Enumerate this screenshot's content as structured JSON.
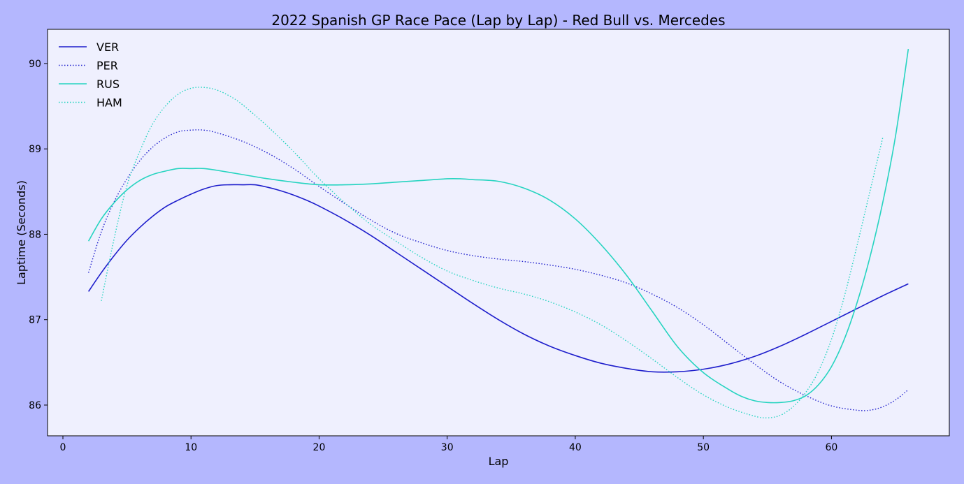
{
  "colors": {
    "background": "#b4b7fe",
    "plot_area": "#eff0fe",
    "red_bull": "#1e1ecc",
    "mercedes": "#26d4c0"
  },
  "chart_data": {
    "type": "line",
    "title": "2022 Spanish GP Race Pace (Lap by Lap) - Red Bull vs. Mercedes",
    "xlabel": "Lap",
    "ylabel": "Laptime (Seconds)",
    "xlim": [
      -1.2,
      69.2
    ],
    "ylim": [
      85.64,
      90.4
    ],
    "xticks": [
      0,
      10,
      20,
      30,
      40,
      50,
      60
    ],
    "yticks": [
      86,
      87,
      88,
      89,
      90
    ],
    "grid": false,
    "legend_position": "upper-left",
    "series": [
      {
        "name": "VER",
        "color": "#1e1ecc",
        "style": "solid",
        "x": [
          2,
          3,
          4,
          5,
          6,
          7,
          8,
          9,
          10,
          11,
          12,
          13,
          14,
          15,
          16,
          17,
          18,
          19,
          20,
          22,
          24,
          26,
          28,
          30,
          32,
          34,
          36,
          38,
          40,
          42,
          44,
          46,
          48,
          50,
          52,
          54,
          56,
          58,
          60,
          62,
          64,
          66
        ],
        "y": [
          87.33,
          87.55,
          87.75,
          87.93,
          88.08,
          88.21,
          88.32,
          88.4,
          88.47,
          88.53,
          88.57,
          88.58,
          88.58,
          88.58,
          88.55,
          88.51,
          88.46,
          88.4,
          88.33,
          88.17,
          87.99,
          87.79,
          87.59,
          87.39,
          87.19,
          87.0,
          86.83,
          86.69,
          86.58,
          86.49,
          86.43,
          86.39,
          86.39,
          86.42,
          86.48,
          86.57,
          86.69,
          86.83,
          86.98,
          87.13,
          87.28,
          87.42
        ]
      },
      {
        "name": "PER",
        "color": "#1e1ecc",
        "style": "dotted",
        "x": [
          2,
          3,
          4,
          5,
          6,
          7,
          8,
          9,
          10,
          11,
          12,
          14,
          16,
          18,
          20,
          22,
          24,
          26,
          28,
          30,
          32,
          34,
          36,
          38,
          40,
          42,
          44,
          46,
          48,
          50,
          52,
          54,
          56,
          58,
          60,
          62,
          63,
          64,
          65,
          66
        ],
        "y": [
          87.55,
          88.03,
          88.38,
          88.65,
          88.86,
          89.02,
          89.13,
          89.2,
          89.22,
          89.22,
          89.19,
          89.09,
          88.95,
          88.77,
          88.56,
          88.36,
          88.17,
          88.01,
          87.9,
          87.81,
          87.75,
          87.71,
          87.68,
          87.64,
          87.59,
          87.52,
          87.43,
          87.3,
          87.14,
          86.94,
          86.71,
          86.48,
          86.27,
          86.11,
          85.99,
          85.94,
          85.94,
          85.98,
          86.06,
          86.18
        ]
      },
      {
        "name": "RUS",
        "color": "#26d4c0",
        "style": "solid",
        "x": [
          2,
          3,
          4,
          5,
          6,
          7,
          8,
          9,
          10,
          11,
          12,
          14,
          16,
          18,
          20,
          22,
          24,
          26,
          28,
          30,
          31,
          32,
          34,
          36,
          38,
          40,
          42,
          44,
          46,
          48,
          50,
          52,
          53,
          54,
          55,
          56,
          57,
          58,
          59,
          60,
          61,
          62,
          63,
          64,
          65,
          66
        ],
        "y": [
          87.92,
          88.18,
          88.37,
          88.52,
          88.63,
          88.7,
          88.74,
          88.77,
          88.77,
          88.77,
          88.75,
          88.7,
          88.65,
          88.61,
          88.58,
          88.58,
          88.59,
          88.61,
          88.63,
          88.65,
          88.65,
          88.64,
          88.62,
          88.54,
          88.4,
          88.18,
          87.88,
          87.52,
          87.1,
          86.68,
          86.38,
          86.18,
          86.1,
          86.05,
          86.03,
          86.03,
          86.05,
          86.11,
          86.24,
          86.45,
          86.77,
          87.2,
          87.73,
          88.37,
          89.15,
          90.17
        ]
      },
      {
        "name": "HAM",
        "color": "#26d4c0",
        "style": "dotted",
        "x": [
          3,
          4,
          5,
          6,
          7,
          8,
          9,
          10,
          11,
          12,
          13,
          14,
          16,
          18,
          20,
          22,
          24,
          26,
          28,
          30,
          32,
          34,
          36,
          38,
          40,
          42,
          44,
          46,
          48,
          50,
          52,
          54,
          55,
          56,
          57,
          58,
          59,
          60,
          61,
          62,
          63,
          64
        ],
        "y": [
          87.22,
          87.95,
          88.57,
          88.97,
          89.29,
          89.5,
          89.64,
          89.71,
          89.72,
          89.69,
          89.62,
          89.52,
          89.26,
          88.97,
          88.65,
          88.37,
          88.12,
          87.92,
          87.73,
          87.57,
          87.46,
          87.37,
          87.3,
          87.21,
          87.09,
          86.94,
          86.75,
          86.54,
          86.32,
          86.12,
          85.97,
          85.87,
          85.85,
          85.88,
          85.98,
          86.15,
          86.4,
          86.77,
          87.27,
          87.87,
          88.5,
          89.13
        ]
      }
    ]
  }
}
